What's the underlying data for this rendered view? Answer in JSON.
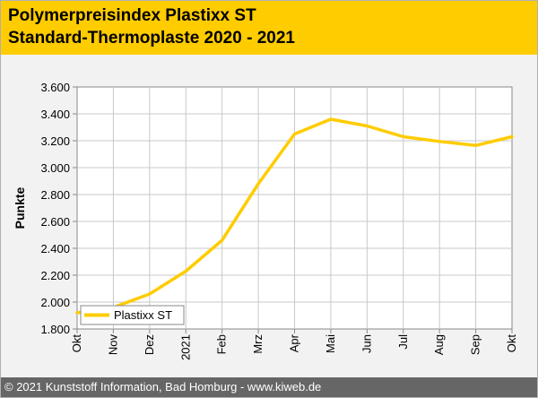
{
  "header": {
    "title_line1": "Polymerpreisindex Plastixx ST",
    "title_line2": "Standard-Thermoplaste 2020 - 2021",
    "background": "#ffcc00"
  },
  "footer": {
    "text": "© 2021 Kunststoff Information, Bad Homburg - www.kiweb.de"
  },
  "chart_data": {
    "type": "line",
    "title": "Polymerpreisindex Plastixx ST Standard-Thermoplaste 2020 - 2021",
    "xlabel": "",
    "ylabel": "Punkte",
    "categories": [
      "Okt",
      "Nov",
      "Dez",
      "2021",
      "Feb",
      "Mrz",
      "Apr",
      "Mai",
      "Jun",
      "Jul",
      "Aug",
      "Sep",
      "Okt"
    ],
    "series": [
      {
        "name": "Plastixx ST",
        "color": "#ffcc00",
        "values": [
          1920,
          1960,
          2060,
          2230,
          2460,
          2880,
          3250,
          3360,
          3310,
          3230,
          3195,
          3165,
          3230
        ]
      }
    ],
    "yticks": [
      "1.800",
      "2.000",
      "2.200",
      "2.400",
      "2.600",
      "2.800",
      "3.000",
      "3.200",
      "3.400",
      "3.600"
    ],
    "ylim": [
      1800,
      3600
    ],
    "grid": true,
    "legend_position": "bottom-left"
  }
}
